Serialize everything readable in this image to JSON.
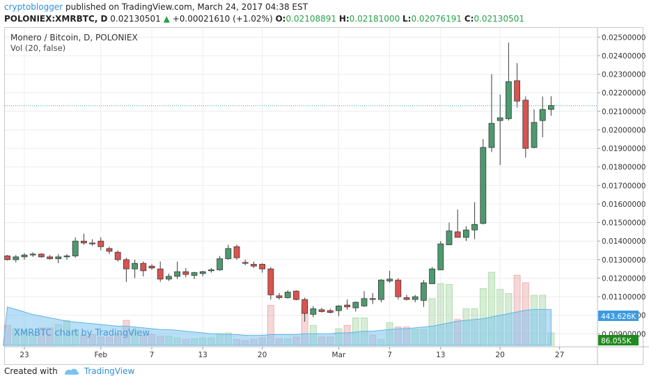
{
  "header": {
    "author": "cryptoblogger",
    "published": "published on TradingView.com, March 24, 2017 04:38 EST",
    "symbol": "POLONIEX:XMRBTC, D",
    "last": "0.02130501",
    "change_arrow": "▲",
    "change": "+0.00021610 (+1.02%)",
    "o_label": "O:",
    "o": "0.02108891",
    "h_label": "H:",
    "h": "0.02181000",
    "l_label": "L:",
    "l": "0.02076191",
    "c_label": "C:",
    "c": "0.02130501"
  },
  "legend": {
    "title": "Monero / Bitcoin, D, POLONIEX",
    "vol": "Vol (20, false)"
  },
  "watermark": "XMRBTC chart by TradingView",
  "footer": {
    "created_with": "Created with",
    "brand": "TradingView"
  },
  "colors": {
    "up": "#4c9a6e",
    "down": "#d9534f",
    "up_vol": "#a7d7a3",
    "down_vol": "#e8a7a7",
    "vol_ma": "#7fc4ee",
    "price_line": "#2e9fa8"
  },
  "chart_data": {
    "type": "candlestick",
    "price_axis": {
      "range": [
        0.0083,
        0.0255
      ],
      "ticks": [
        "0.02500000",
        "0.02400000",
        "0.02300000",
        "0.02200000",
        "0.02100000",
        "0.02000000",
        "0.01900000",
        "0.01800000",
        "0.01700000",
        "0.01600000",
        "0.01500000",
        "0.01400000",
        "0.01300000",
        "0.01200000",
        "0.01100000",
        "0.01000000",
        "0.00900000"
      ]
    },
    "time_axis": {
      "ticks": [
        {
          "label": "23",
          "day": 0
        },
        {
          "label": "Feb",
          "day": 9
        },
        {
          "label": "7",
          "day": 15
        },
        {
          "label": "13",
          "day": 21
        },
        {
          "label": "20",
          "day": 28
        },
        {
          "label": "Mar",
          "day": 37
        },
        {
          "label": "7",
          "day": 43
        },
        {
          "label": "13",
          "day": 49
        },
        {
          "label": "20",
          "day": 56
        },
        {
          "label": "27",
          "day": 63
        }
      ]
    },
    "last_price": 0.02130501,
    "volume_ma_label": "443.626K",
    "volume_label": "86.055K",
    "candles": [
      [
        0.0132,
        0.01325,
        0.01295,
        0.013
      ],
      [
        0.013,
        0.01325,
        0.01285,
        0.01315
      ],
      [
        0.01315,
        0.01335,
        0.013,
        0.01325
      ],
      [
        0.01325,
        0.0134,
        0.01315,
        0.0133
      ],
      [
        0.0133,
        0.01335,
        0.0131,
        0.01315
      ],
      [
        0.01315,
        0.01325,
        0.013,
        0.01305
      ],
      [
        0.01305,
        0.0133,
        0.0128,
        0.01315
      ],
      [
        0.01315,
        0.0133,
        0.013,
        0.0132
      ],
      [
        0.0132,
        0.0142,
        0.0131,
        0.014
      ],
      [
        0.014,
        0.0144,
        0.0138,
        0.0139
      ],
      [
        0.0139,
        0.0141,
        0.01375,
        0.01385
      ],
      [
        0.014,
        0.0142,
        0.0135,
        0.0137
      ],
      [
        0.0136,
        0.0137,
        0.0133,
        0.01345
      ],
      [
        0.0134,
        0.0135,
        0.0129,
        0.013
      ],
      [
        0.013,
        0.0131,
        0.0118,
        0.0125
      ],
      [
        0.0125,
        0.013,
        0.012,
        0.0128
      ],
      [
        0.0128,
        0.0129,
        0.0121,
        0.0124
      ],
      [
        0.01265,
        0.01275,
        0.01245,
        0.01255
      ],
      [
        0.0125,
        0.0129,
        0.0118,
        0.01195
      ],
      [
        0.01195,
        0.01225,
        0.01185,
        0.0121
      ],
      [
        0.0121,
        0.0129,
        0.01195,
        0.01235
      ],
      [
        0.01235,
        0.01255,
        0.01205,
        0.0122
      ],
      [
        0.01215,
        0.01235,
        0.01195,
        0.0123
      ],
      [
        0.01225,
        0.0124,
        0.0121,
        0.01235
      ],
      [
        0.0124,
        0.01255,
        0.0123,
        0.01245
      ],
      [
        0.01245,
        0.0132,
        0.0124,
        0.01305
      ],
      [
        0.01305,
        0.0138,
        0.013,
        0.0136
      ],
      [
        0.0137,
        0.0138,
        0.013,
        0.0131
      ],
      [
        0.01285,
        0.013,
        0.0127,
        0.0128
      ],
      [
        0.01275,
        0.0129,
        0.01255,
        0.01265
      ],
      [
        0.01275,
        0.0128,
        0.0123,
        0.0125
      ],
      [
        0.0125,
        0.0126,
        0.01085,
        0.0111
      ],
      [
        0.01105,
        0.0112,
        0.01085,
        0.01095
      ],
      [
        0.01095,
        0.01135,
        0.0109,
        0.01125
      ],
      [
        0.0113,
        0.01135,
        0.0108,
        0.01085
      ],
      [
        0.01085,
        0.01095,
        0.00965,
        0.0101
      ],
      [
        0.01005,
        0.0105,
        0.0099,
        0.01035
      ],
      [
        0.0103,
        0.0104,
        0.01015,
        0.0102
      ],
      [
        0.01025,
        0.01035,
        0.0101,
        0.01015
      ],
      [
        0.01025,
        0.01055,
        0.00995,
        0.0105
      ],
      [
        0.01055,
        0.01085,
        0.0103,
        0.01045
      ],
      [
        0.0104,
        0.01075,
        0.0102,
        0.0107
      ],
      [
        0.0105,
        0.0113,
        0.01045,
        0.0109
      ],
      [
        0.0109,
        0.0112,
        0.0106,
        0.01085
      ],
      [
        0.01085,
        0.01195,
        0.0107,
        0.0119
      ],
      [
        0.01185,
        0.0124,
        0.01175,
        0.01195
      ],
      [
        0.0119,
        0.012,
        0.01085,
        0.011
      ],
      [
        0.01095,
        0.0111,
        0.0108,
        0.01085
      ],
      [
        0.01085,
        0.0111,
        0.0107,
        0.011
      ],
      [
        0.0108,
        0.0119,
        0.01045,
        0.01175
      ],
      [
        0.0117,
        0.0126,
        0.0117,
        0.0125
      ],
      [
        0.01245,
        0.014,
        0.01245,
        0.01385
      ],
      [
        0.0138,
        0.015,
        0.0138,
        0.01455
      ],
      [
        0.0145,
        0.0157,
        0.01425,
        0.0142
      ],
      [
        0.0142,
        0.0148,
        0.014,
        0.0146
      ],
      [
        0.0146,
        0.0161,
        0.0141,
        0.0149
      ],
      [
        0.01495,
        0.0195,
        0.0149,
        0.01905
      ],
      [
        0.01905,
        0.023,
        0.0188,
        0.02035
      ],
      [
        0.0205,
        0.0219,
        0.0181,
        0.02065
      ],
      [
        0.0206,
        0.0247,
        0.0205,
        0.0226
      ],
      [
        0.02265,
        0.0236,
        0.0212,
        0.02155
      ],
      [
        0.0216,
        0.0218,
        0.0185,
        0.019
      ],
      [
        0.01905,
        0.0211,
        0.019,
        0.0204
      ],
      [
        0.0205,
        0.0218,
        0.0196,
        0.0211
      ],
      [
        0.0211,
        0.02181,
        0.02076,
        0.02131
      ]
    ],
    "volume": [
      48,
      40,
      34,
      32,
      42,
      42,
      50,
      60,
      38,
      24,
      26,
      20,
      20,
      28,
      60,
      36,
      24,
      26,
      22,
      22,
      18,
      14,
      16,
      18,
      18,
      28,
      30,
      14,
      12,
      14,
      18,
      96,
      16,
      16,
      20,
      96,
      48,
      20,
      20,
      40,
      48,
      66,
      66,
      24,
      14,
      54,
      44,
      44,
      38,
      38,
      112,
      148,
      146,
      62,
      88,
      88,
      136,
      175,
      134,
      124,
      168,
      150,
      120,
      120,
      30
    ],
    "volume_ma": [
      92,
      86,
      80,
      74,
      70,
      66,
      62,
      58,
      56,
      54,
      52,
      50,
      48,
      46,
      46,
      44,
      42,
      40,
      38,
      38,
      36,
      34,
      32,
      30,
      28,
      28,
      26,
      26,
      24,
      24,
      24,
      26,
      26,
      26,
      26,
      28,
      28,
      28,
      28,
      30,
      30,
      32,
      34,
      34,
      36,
      38,
      40,
      40,
      42,
      44,
      46,
      50,
      54,
      58,
      60,
      62,
      64,
      68,
      72,
      76,
      80,
      84,
      86,
      86,
      86
    ]
  }
}
